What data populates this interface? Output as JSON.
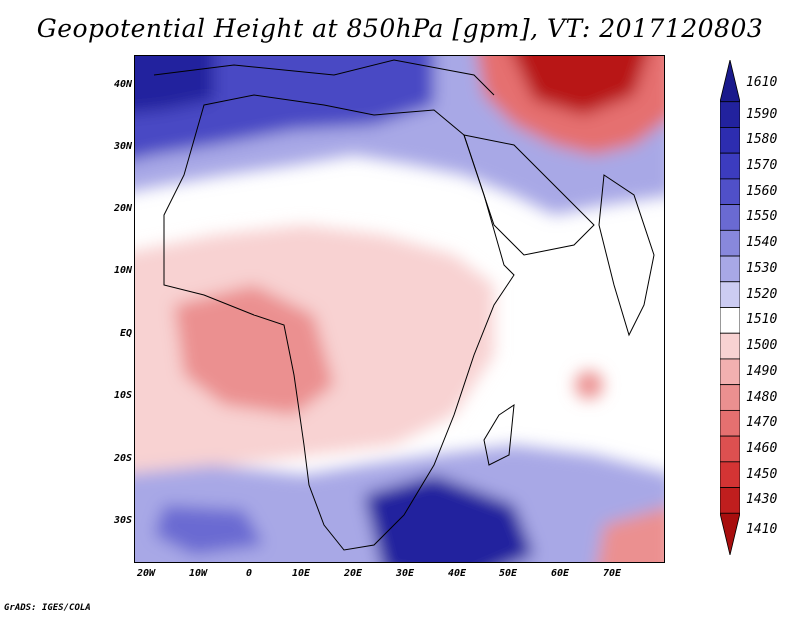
{
  "title": "Geopotential Height at 850hPa [gpm], VT: 2017120803",
  "y_axis_labels": [
    "40N",
    "30N",
    "20N",
    "10N",
    "EQ",
    "10S",
    "20S",
    "30S"
  ],
  "x_axis_labels": [
    "20W",
    "10W",
    "0",
    "10E",
    "20E",
    "30E",
    "40E",
    "50E",
    "60E",
    "70E"
  ],
  "colorbar": {
    "levels": [
      "1610",
      "1590",
      "1580",
      "1570",
      "1560",
      "1550",
      "1540",
      "1530",
      "1520",
      "1510",
      "1500",
      "1490",
      "1480",
      "1470",
      "1460",
      "1450",
      "1430",
      "1410"
    ],
    "colors": [
      "#1a1a8c",
      "#22229e",
      "#2d2db0",
      "#3c3cbf",
      "#5050c8",
      "#6a6ad2",
      "#8888dc",
      "#a8a8e6",
      "#ccccf2",
      "#ffffff",
      "#f8d2d2",
      "#f2b0b0",
      "#eb9090",
      "#e57070",
      "#dd5050",
      "#d43434",
      "#c01e1e",
      "#a80e0e"
    ]
  },
  "credit": "GrADS: IGES/COLA"
}
